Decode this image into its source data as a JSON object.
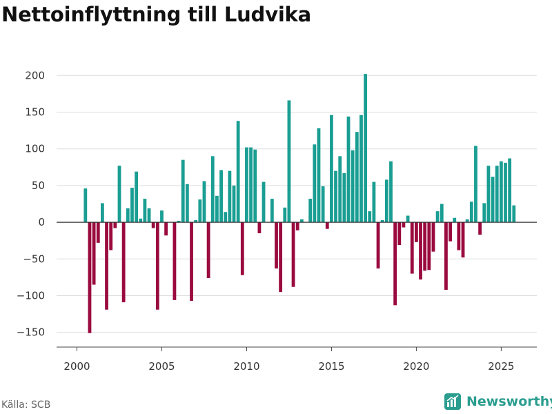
{
  "colors": {
    "positive": "#1a9e93",
    "negative": "#9a0a3e",
    "grid": "#dddddd",
    "zero_line": "#333333",
    "brand": "#2a9d8f"
  },
  "footer": {
    "source": "Källa: SCB",
    "brand": "Newsworthy"
  },
  "chart_data": {
    "type": "bar",
    "title": "Nettoinflyttning till Ludvika",
    "xlabel": "",
    "ylabel": "",
    "xlim": [
      1998.8,
      2027.1
    ],
    "ylim": [
      -170,
      220
    ],
    "yticks": [
      -150,
      -100,
      -50,
      0,
      50,
      100,
      150,
      200
    ],
    "ytick_labels": [
      "−150",
      "−100",
      "−50",
      "0",
      "50",
      "100",
      "150",
      "200"
    ],
    "xticks": [
      2000,
      2005,
      2010,
      2015,
      2020,
      2025
    ],
    "xtick_labels": [
      "2000",
      "2005",
      "2010",
      "2015",
      "2020",
      "2025"
    ],
    "frequency": "quarterly",
    "start": 2000.5,
    "step": 0.25,
    "values": [
      46,
      -151,
      -85,
      -28,
      26,
      -119,
      -38,
      -8,
      77,
      -109,
      19,
      47,
      69,
      5,
      32,
      19,
      -8,
      -119,
      16,
      -18,
      0,
      -106,
      2,
      85,
      52,
      -107,
      3,
      31,
      56,
      -76,
      90,
      36,
      71,
      14,
      70,
      50,
      138,
      -72,
      102,
      102,
      99,
      -15,
      55,
      0,
      32,
      -63,
      -95,
      20,
      166,
      -88,
      -11,
      4,
      0,
      32,
      106,
      128,
      49,
      -9,
      146,
      70,
      90,
      67,
      144,
      98,
      123,
      146,
      202,
      15,
      55,
      -63,
      3,
      58,
      83,
      -113,
      -31,
      -7,
      9,
      -70,
      -27,
      -78,
      -66,
      -65,
      -40,
      15,
      25,
      -92,
      -26,
      6,
      -38,
      -48,
      4,
      28,
      104,
      -17,
      26,
      77,
      62,
      77,
      83,
      81,
      87,
      23
    ]
  }
}
